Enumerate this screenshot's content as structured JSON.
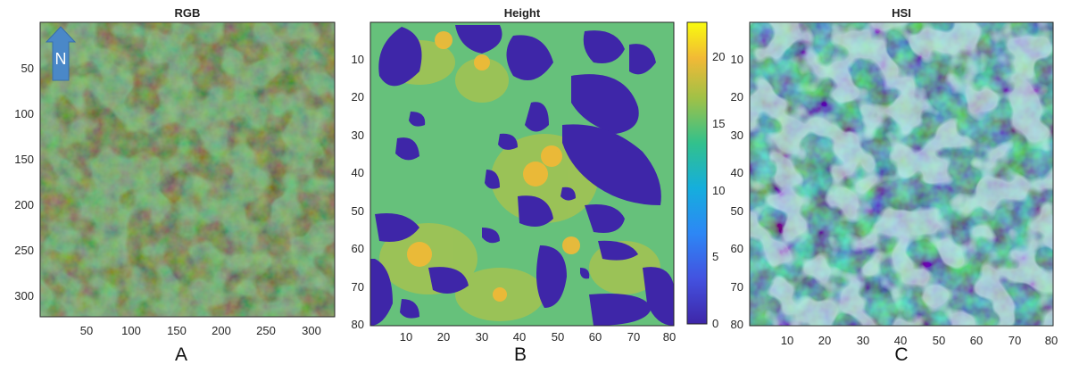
{
  "panels": [
    {
      "id": "rgb",
      "title": "RGB",
      "letter": "A",
      "x_ticks": [
        "50",
        "100",
        "150",
        "200",
        "250",
        "300"
      ],
      "y_ticks": [
        "50",
        "100",
        "150",
        "200",
        "250",
        "300"
      ],
      "north_label": "N"
    },
    {
      "id": "height",
      "title": "Height",
      "letter": "B",
      "x_ticks": [
        "10",
        "20",
        "30",
        "40",
        "50",
        "60",
        "70",
        "80"
      ],
      "y_ticks": [
        "10",
        "20",
        "30",
        "40",
        "50",
        "60",
        "70",
        "80"
      ],
      "colorbar_ticks": [
        "0",
        "5",
        "10",
        "15",
        "20"
      ]
    },
    {
      "id": "hsi",
      "title": "HSI",
      "letter": "C",
      "x_ticks": [
        "10",
        "20",
        "30",
        "40",
        "50",
        "60",
        "70",
        "80"
      ],
      "y_ticks": [
        "10",
        "20",
        "30",
        "40",
        "50",
        "60",
        "70",
        "80"
      ]
    }
  ],
  "colors": {
    "colorbar_top": "#f9fb0e",
    "colorbar_mid": "#1fb8aa",
    "colorbar_bottom": "#3e26a8",
    "north_arrow": "#4a88c8"
  }
}
